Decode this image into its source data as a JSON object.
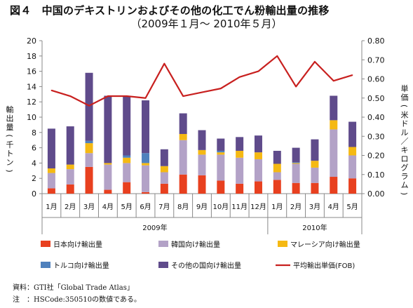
{
  "title": "図４　中国のデキストリンおよびその他の化工でん粉輸出量の推移",
  "subtitle": "（2009年１月～ 2010年５月）",
  "notes": {
    "source": "資料：GTI社「Global Trade Atlas」",
    "note": "注　：HSCode:350510の数値である。"
  },
  "chart_data": {
    "type": "bar",
    "stacked": true,
    "categories": [
      "1月",
      "2月",
      "3月",
      "4月",
      "5月",
      "6月",
      "7月",
      "8月",
      "9月",
      "10月",
      "11月",
      "12月",
      "1月",
      "2月",
      "3月",
      "4月",
      "5月"
    ],
    "groups": [
      {
        "label": "2009年",
        "from": 0,
        "to": 11
      },
      {
        "label": "2010年",
        "from": 12,
        "to": 16
      }
    ],
    "ylabel": "輸出量（千トン）",
    "ylim": [
      0,
      20
    ],
    "yticks": [
      "0",
      "2",
      "4",
      "6",
      "8",
      "10",
      "12",
      "14",
      "16",
      "18",
      "20"
    ],
    "y2label": "単価（米ドル／キログラム）",
    "y2lim": [
      0,
      0.8
    ],
    "y2ticks": [
      "0.00",
      "0.10",
      "0.20",
      "0.30",
      "0.40",
      "0.50",
      "0.60",
      "0.70",
      "0.80"
    ],
    "series": [
      {
        "name": "日本向け輸出量",
        "color": "#e8401f",
        "values": [
          0.7,
          1.2,
          3.5,
          0.5,
          1.5,
          0.2,
          1.3,
          2.5,
          2.4,
          1.7,
          1.3,
          1.6,
          1.8,
          1.4,
          1.4,
          2.2,
          2.0
        ]
      },
      {
        "name": "韓国向け輸出量",
        "color": "#b3a2c7",
        "values": [
          2.0,
          2.0,
          1.8,
          3.3,
          2.5,
          3.5,
          1.5,
          4.5,
          2.7,
          3.4,
          3.4,
          2.9,
          1.0,
          2.5,
          2.0,
          6.2,
          3.0
        ]
      },
      {
        "name": "マレーシア向け輸出量",
        "color": "#f5b913",
        "values": [
          0.6,
          0.6,
          1.3,
          0.2,
          0.7,
          0.3,
          0.8,
          0.8,
          0.6,
          0.3,
          0.9,
          0.9,
          1.1,
          0.1,
          0.9,
          1.2,
          1.1
        ]
      },
      {
        "name": "トルコ向け輸出量",
        "color": "#4f81bd",
        "values": [
          0,
          0,
          0.3,
          0,
          0.3,
          1.3,
          0,
          0,
          0,
          0.2,
          0,
          0,
          0,
          0.1,
          0,
          0,
          0
        ]
      },
      {
        "name": "その他の国向け輸出量",
        "color": "#5f4b8b",
        "values": [
          5.2,
          5.0,
          8.9,
          8.8,
          7.7,
          6.9,
          2.2,
          2.7,
          2.6,
          1.6,
          1.8,
          2.2,
          1.7,
          1.9,
          2.8,
          3.2,
          3.3
        ]
      }
    ],
    "line": {
      "name": "平均輸出単価(FOB)",
      "color": "#c8201f",
      "axis": "right",
      "values": [
        0.54,
        0.51,
        0.46,
        0.51,
        0.51,
        0.5,
        0.68,
        0.51,
        0.53,
        0.55,
        0.61,
        0.64,
        0.72,
        0.56,
        0.69,
        0.59,
        0.62
      ]
    },
    "grid": false,
    "legend": "bottom"
  }
}
